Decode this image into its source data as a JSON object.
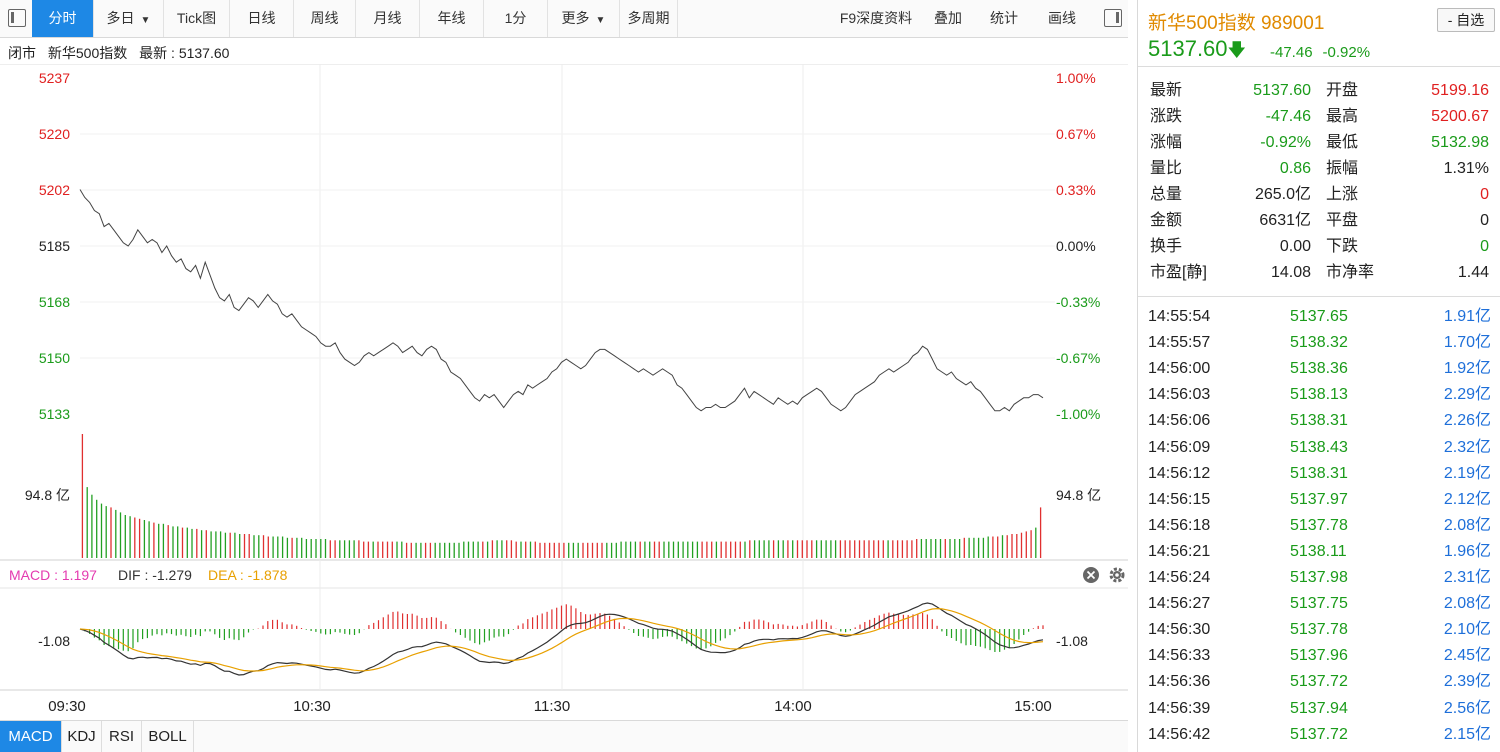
{
  "toolbar": {
    "tabs": [
      {
        "label": "分时",
        "active": true
      },
      {
        "label": "多日",
        "caret": true
      },
      {
        "label": "Tick图"
      },
      {
        "label": "日线"
      },
      {
        "label": "周线"
      },
      {
        "label": "月线"
      },
      {
        "label": "年线"
      },
      {
        "label": "1分"
      },
      {
        "label": "更多",
        "caret": true
      },
      {
        "label": "多周期"
      }
    ],
    "right_items": [
      "F9深度资料",
      "叠加",
      "统计",
      "画线"
    ]
  },
  "info": {
    "status": "闭市",
    "name": "新华500指数",
    "latest_label": "最新",
    "latest_value": "5137.60"
  },
  "chart_data": {
    "type": "line",
    "price": {
      "y_ticks": [
        "5237",
        "5220",
        "5202",
        "5185",
        "5168",
        "5150",
        "5133"
      ],
      "pct_ticks": [
        "1.00%",
        "0.67%",
        "0.33%",
        "0.00%",
        "-0.33%",
        "-0.67%",
        "-1.00%"
      ],
      "ylim": [
        5133,
        5237
      ],
      "prev_close": 5185,
      "values": [
        5202.5,
        5200,
        5198.5,
        5196,
        5195,
        5191,
        5192,
        5190,
        5188,
        5186,
        5185,
        5187,
        5190,
        5188,
        5186,
        5187,
        5186,
        5183,
        5185,
        5182,
        5180,
        5181,
        5178,
        5177,
        5179,
        5175,
        5180,
        5176,
        5172,
        5169,
        5168,
        5170,
        5166,
        5165,
        5167,
        5169,
        5168,
        5166,
        5168,
        5170,
        5168,
        5167,
        5164,
        5163,
        5164,
        5162,
        5160,
        5159,
        5158,
        5157,
        5155,
        5154,
        5154,
        5155,
        5152,
        5150,
        5149,
        5148,
        5149,
        5151,
        5152,
        5151,
        5152,
        5153,
        5154,
        5155,
        5154,
        5152,
        5153,
        5154,
        5152,
        5151,
        5153,
        5154,
        5153,
        5150,
        5149,
        5146,
        5145,
        5144,
        5142,
        5140,
        5138,
        5137,
        5139,
        5138,
        5139,
        5137,
        5135,
        5137,
        5139,
        5140,
        5139,
        5142,
        5141,
        5142,
        5143,
        5144,
        5146,
        5147,
        5149,
        5150,
        5149,
        5148,
        5147,
        5148,
        5150,
        5152,
        5153,
        5153,
        5152,
        5151,
        5150,
        5149,
        5148,
        5147,
        5146,
        5147,
        5146,
        5145,
        5146,
        5147,
        5146,
        5145,
        5142,
        5141,
        5139,
        5137,
        5135,
        5134,
        5135,
        5135,
        5136,
        5135,
        5135,
        5136,
        5137,
        5139,
        5141,
        5138,
        5140,
        5139,
        5138,
        5137,
        5136,
        5138,
        5137,
        5136,
        5137,
        5136,
        5138,
        5139,
        5140,
        5141,
        5140,
        5138,
        5136,
        5135,
        5134,
        5135,
        5137,
        5139,
        5140,
        5141,
        5142,
        5143,
        5145,
        5146,
        5147,
        5146,
        5147,
        5148,
        5149,
        5151,
        5152,
        5154,
        5153,
        5150,
        5147,
        5146,
        5145,
        5146,
        5144,
        5143,
        5142,
        5143,
        5141,
        5140,
        5138,
        5136,
        5134,
        5134,
        5135,
        5134,
        5136,
        5137,
        5138,
        5138,
        5139,
        5139,
        5138
      ]
    },
    "volume": {
      "y_label": "94.8 亿",
      "values": [
        98,
        56,
        50,
        46,
        43,
        41,
        40,
        38,
        36,
        34,
        33,
        32,
        31,
        30,
        29,
        28,
        27,
        27,
        26,
        25,
        25,
        24,
        24,
        23,
        23,
        22,
        22,
        21,
        21,
        21,
        20,
        20,
        20,
        19,
        19,
        19,
        18,
        18,
        18,
        17,
        17,
        17,
        17,
        16,
        16,
        16,
        16,
        15,
        15,
        15,
        15,
        15,
        14,
        14,
        14,
        14,
        14,
        14,
        14,
        13,
        13,
        13,
        13,
        13,
        13,
        13,
        13,
        13,
        12,
        12,
        12,
        12,
        12,
        12,
        12,
        12,
        12,
        12,
        12,
        12,
        13,
        13,
        13,
        13,
        13,
        13,
        14,
        14,
        14,
        14,
        14,
        13,
        13,
        13,
        13,
        13,
        12,
        12,
        12,
        12,
        12,
        12,
        12,
        12,
        12,
        12,
        12,
        12,
        12,
        12,
        12,
        12,
        12,
        13,
        13,
        13,
        13,
        13,
        13,
        13,
        13,
        13,
        13,
        13,
        13,
        13,
        13,
        13,
        13,
        13,
        13,
        13,
        13,
        13,
        13,
        13,
        13,
        13,
        13,
        13,
        14,
        14,
        14,
        14,
        14,
        14,
        14,
        14,
        14,
        14,
        14,
        14,
        14,
        14,
        14,
        14,
        14,
        14,
        14,
        14,
        14,
        14,
        14,
        14,
        14,
        14,
        14,
        14,
        14,
        14,
        14,
        14,
        14,
        14,
        14,
        15,
        15,
        15,
        15,
        15,
        15,
        15,
        15,
        15,
        15,
        16,
        16,
        16,
        16,
        16,
        17,
        17,
        17,
        18,
        18,
        19,
        19,
        20,
        21,
        22,
        24,
        40
      ]
    },
    "macd": {
      "label": "MACD : 1.197",
      "dif_label": "DIF : -1.279",
      "dea_label": "DEA : -1.878",
      "y_tick": "-1.08",
      "colors": {
        "macd": "#e43bb0",
        "dif": "#333333",
        "dea": "#e8a000"
      }
    },
    "x_ticks": [
      "09:30",
      "10:30",
      "11:30",
      "14:00",
      "15:00"
    ],
    "grid": true
  },
  "bottom_tabs": [
    "MACD",
    "KDJ",
    "RSI",
    "BOLL"
  ],
  "panel": {
    "title": "新华500指数  989001",
    "add_label": "- 自选",
    "price": "5137.60",
    "change": "-47.46",
    "change_pct": "-0.92%",
    "quotes": [
      {
        "k1": "最新",
        "v1": "5137.60",
        "c1": "g",
        "k2": "开盘",
        "v2": "5199.16",
        "c2": "r"
      },
      {
        "k1": "涨跌",
        "v1": "-47.46",
        "c1": "g",
        "k2": "最高",
        "v2": "5200.67",
        "c2": "r"
      },
      {
        "k1": "涨幅",
        "v1": "-0.92%",
        "c1": "g",
        "k2": "最低",
        "v2": "5132.98",
        "c2": "g"
      },
      {
        "k1": "量比",
        "v1": "0.86",
        "c1": "g",
        "k2": "振幅",
        "v2": "1.31%",
        "c2": "k"
      },
      {
        "k1": "总量",
        "v1": "265.0亿",
        "c1": "k",
        "k2": "上涨",
        "v2": "0",
        "c2": "r"
      },
      {
        "k1": "金额",
        "v1": "6631亿",
        "c1": "k",
        "k2": "平盘",
        "v2": "0",
        "c2": "k"
      },
      {
        "k1": "换手",
        "v1": "0.00",
        "c1": "k",
        "k2": "下跌",
        "v2": "0",
        "c2": "g"
      },
      {
        "k1": "市盈[静]",
        "v1": "14.08",
        "c1": "k",
        "k2": "市净率",
        "v2": "1.44",
        "c2": "k"
      }
    ],
    "ticks": [
      {
        "time": "14:55:54",
        "price": "5137.65",
        "vol": "1.91亿"
      },
      {
        "time": "14:55:57",
        "price": "5138.32",
        "vol": "1.70亿"
      },
      {
        "time": "14:56:00",
        "price": "5138.36",
        "vol": "1.92亿"
      },
      {
        "time": "14:56:03",
        "price": "5138.13",
        "vol": "2.29亿"
      },
      {
        "time": "14:56:06",
        "price": "5138.31",
        "vol": "2.26亿"
      },
      {
        "time": "14:56:09",
        "price": "5138.43",
        "vol": "2.32亿"
      },
      {
        "time": "14:56:12",
        "price": "5138.31",
        "vol": "2.19亿"
      },
      {
        "time": "14:56:15",
        "price": "5137.97",
        "vol": "2.12亿"
      },
      {
        "time": "14:56:18",
        "price": "5137.78",
        "vol": "2.08亿"
      },
      {
        "time": "14:56:21",
        "price": "5138.11",
        "vol": "1.96亿"
      },
      {
        "time": "14:56:24",
        "price": "5137.98",
        "vol": "2.31亿"
      },
      {
        "time": "14:56:27",
        "price": "5137.75",
        "vol": "2.08亿"
      },
      {
        "time": "14:56:30",
        "price": "5137.78",
        "vol": "2.10亿"
      },
      {
        "time": "14:56:33",
        "price": "5137.96",
        "vol": "2.45亿"
      },
      {
        "time": "14:56:36",
        "price": "5137.72",
        "vol": "2.39亿"
      },
      {
        "time": "14:56:39",
        "price": "5137.94",
        "vol": "2.56亿"
      },
      {
        "time": "14:56:42",
        "price": "5137.72",
        "vol": "2.15亿"
      }
    ]
  }
}
